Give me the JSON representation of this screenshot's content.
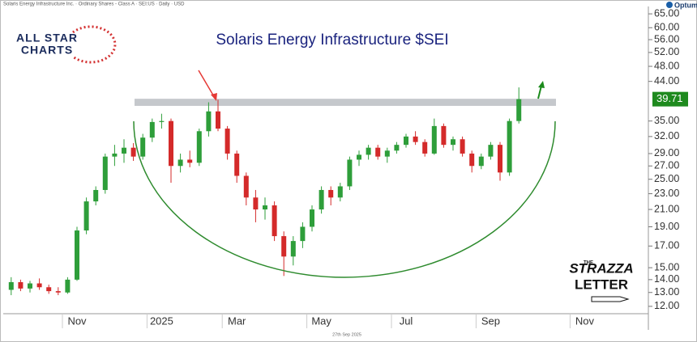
{
  "chart_data": {
    "type": "candlestick",
    "header": "Solaris Energy Infrastructure Inc. · Ordinary Shares - Class A · SEI:US · Daily · USD",
    "title": "Solaris Energy Infrastructure $SEI",
    "footer_date": "27th Sep 2025",
    "brand": "Optuma",
    "logo_left": [
      "ALL STAR",
      "CHARTS"
    ],
    "logo_right": [
      "THE",
      "STRAZZA",
      "LETTER"
    ],
    "categories": [
      null,
      null,
      null,
      null,
      null,
      null,
      null,
      "Nov",
      null,
      null,
      null,
      null,
      null,
      null,
      null,
      null,
      "2025",
      null,
      null,
      null,
      null,
      null,
      null,
      null,
      "Mar",
      null,
      null,
      null,
      null,
      null,
      null,
      null,
      null,
      "May",
      null,
      null,
      null,
      null,
      null,
      null,
      null,
      null,
      "Jul",
      null,
      null,
      null,
      null,
      null,
      null,
      null,
      null,
      "Sep",
      null,
      null,
      null,
      null,
      null,
      null,
      null,
      null,
      null,
      "Nov",
      null,
      null,
      null,
      null
    ],
    "open": [
      13.2,
      13.8,
      13.3,
      13.7,
      13.4,
      13.1,
      13.0,
      14.0,
      18.6,
      22.0,
      23.5,
      28.5,
      29.0,
      30.0,
      28.5,
      31.8,
      34.8,
      35.0,
      27.0,
      28.0,
      27.5,
      33.0,
      37.0,
      33.5,
      29.0,
      25.5,
      22.5,
      21.0,
      21.5,
      18.0,
      16.0,
      17.5,
      19.0,
      21.0,
      23.5,
      22.5,
      24.0,
      28.0,
      28.8,
      30.0,
      28.5,
      29.5,
      30.5,
      32.0,
      31.0,
      29.0,
      34.0,
      30.5,
      31.5,
      29.0,
      27.0,
      28.5,
      30.5,
      26.0,
      35.0,
      null,
      null,
      null,
      null,
      null,
      null,
      null,
      null,
      null,
      null,
      null
    ],
    "high": [
      14.2,
      14.0,
      13.9,
      14.1,
      13.6,
      13.4,
      14.2,
      19.0,
      22.5,
      24.0,
      29.0,
      30.5,
      31.5,
      30.8,
      32.5,
      35.5,
      36.5,
      35.5,
      29.0,
      29.5,
      33.5,
      39.0,
      39.6,
      34.0,
      29.5,
      26.0,
      23.5,
      22.5,
      22.0,
      18.5,
      18.0,
      19.5,
      21.5,
      24.0,
      24.0,
      24.5,
      28.5,
      29.5,
      30.5,
      30.5,
      30.0,
      31.0,
      32.5,
      33.0,
      31.5,
      35.5,
      34.5,
      32.0,
      32.0,
      29.5,
      29.0,
      31.0,
      31.0,
      35.5,
      42.5,
      null,
      null,
      null,
      null,
      null,
      null,
      null,
      null,
      null,
      null,
      null
    ],
    "low": [
      12.8,
      13.1,
      13.0,
      13.2,
      12.9,
      12.8,
      12.9,
      13.9,
      18.2,
      21.5,
      23.0,
      27.0,
      27.5,
      27.8,
      28.0,
      31.0,
      33.5,
      24.5,
      26.0,
      26.8,
      27.0,
      32.0,
      33.0,
      28.0,
      24.5,
      21.5,
      19.5,
      19.8,
      17.5,
      14.3,
      15.2,
      16.8,
      18.5,
      20.5,
      21.5,
      22.0,
      23.5,
      27.0,
      28.0,
      28.0,
      27.5,
      29.0,
      30.0,
      30.5,
      28.5,
      28.8,
      30.0,
      29.5,
      28.5,
      26.0,
      26.5,
      28.0,
      24.8,
      25.5,
      34.5,
      null,
      null,
      null,
      null,
      null,
      null,
      null,
      null,
      null,
      null,
      null
    ],
    "close": [
      13.8,
      13.3,
      13.7,
      13.4,
      13.1,
      13.0,
      14.0,
      18.6,
      22.0,
      23.5,
      28.5,
      29.0,
      30.0,
      28.5,
      31.8,
      34.8,
      35.0,
      27.0,
      28.0,
      27.5,
      33.0,
      37.0,
      33.5,
      29.0,
      25.5,
      22.5,
      21.0,
      21.5,
      18.0,
      16.0,
      17.5,
      19.0,
      21.0,
      23.5,
      22.5,
      24.0,
      28.0,
      28.8,
      30.0,
      28.5,
      29.5,
      30.5,
      32.0,
      31.0,
      29.0,
      34.0,
      30.5,
      31.5,
      29.0,
      27.0,
      28.5,
      30.5,
      26.0,
      35.0,
      39.71,
      null,
      null,
      null,
      null,
      null,
      null,
      null,
      null,
      null,
      null,
      null
    ],
    "up_color": "#2e9e3a",
    "down_color": "#d42a2a",
    "resistance": [
      38.2,
      39.8
    ],
    "log_scale": true,
    "ylim": [
      11.5,
      67.2
    ],
    "yticks": [
      {
        "value": 12,
        "label": "12.00"
      },
      {
        "value": 13,
        "label": "13.00"
      },
      {
        "value": 14,
        "label": "14.00"
      },
      {
        "value": 15,
        "label": "15.00"
      },
      {
        "value": 17,
        "label": "17.00"
      },
      {
        "value": 19,
        "label": "19.00"
      },
      {
        "value": 21,
        "label": "21.00"
      },
      {
        "value": 23,
        "label": "23.00"
      },
      {
        "value": 25,
        "label": "25.00"
      },
      {
        "value": 27,
        "label": "27.00"
      },
      {
        "value": 29,
        "label": "29.00"
      },
      {
        "value": 32,
        "label": "32.00"
      },
      {
        "value": 35,
        "label": "35.00"
      },
      {
        "value": 44,
        "label": "44.00"
      },
      {
        "value": 48,
        "label": "48.00"
      },
      {
        "value": 52,
        "label": "52.00"
      },
      {
        "value": 56,
        "label": "56.00"
      },
      {
        "value": 60,
        "label": "60.00"
      },
      {
        "value": 65,
        "label": "65.00"
      }
    ]
  }
}
